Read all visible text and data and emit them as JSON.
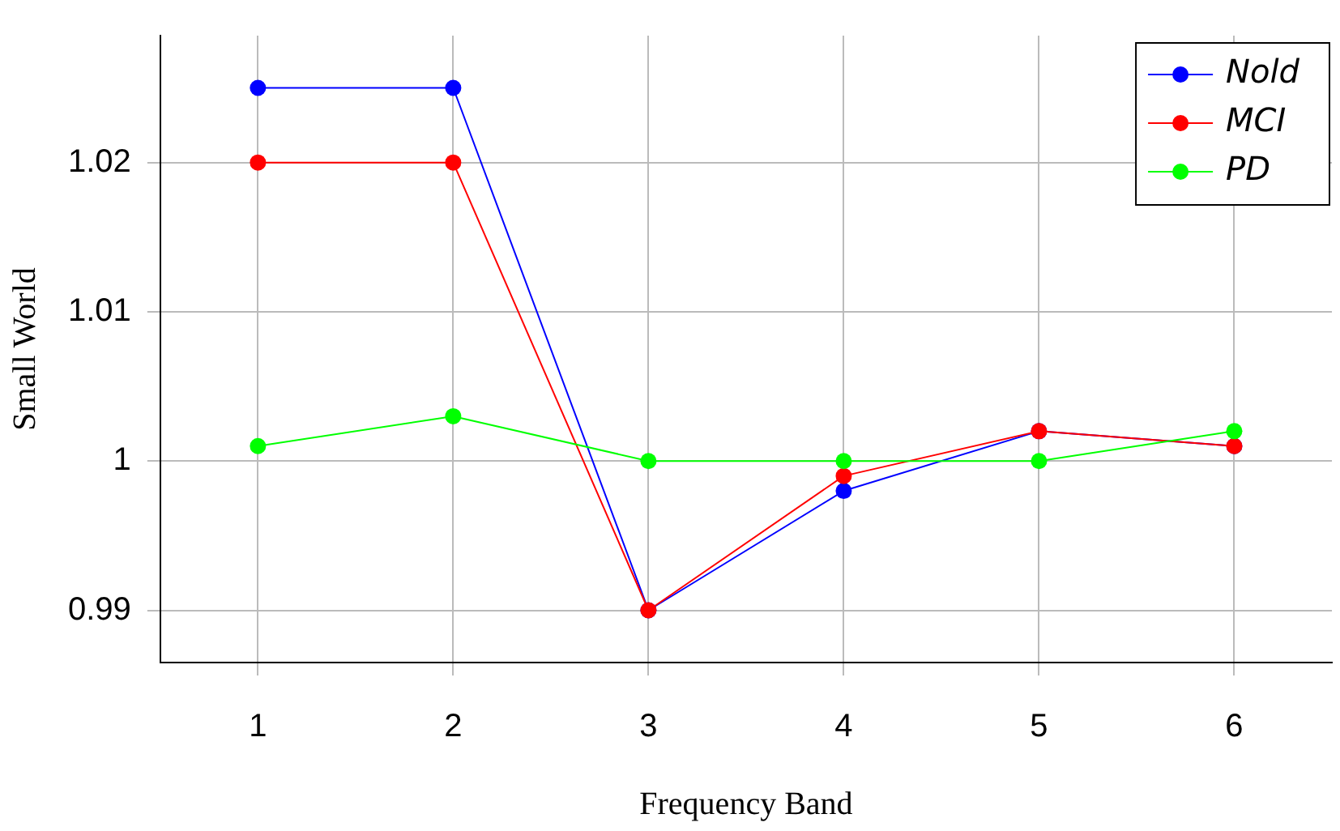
{
  "chart_data": {
    "type": "line",
    "xlabel": "Frequency Band",
    "ylabel": "Small World",
    "categories": [
      "1",
      "2",
      "3",
      "4",
      "5",
      "6"
    ],
    "series": [
      {
        "name": "Nold",
        "color": "#0000ff",
        "values": [
          1.025,
          1.025,
          0.99,
          0.998,
          1.002,
          1.001
        ]
      },
      {
        "name": "MCI",
        "color": "#ff0000",
        "values": [
          1.02,
          1.02,
          0.99,
          0.999,
          1.002,
          1.001
        ]
      },
      {
        "name": "PD",
        "color": "#00ff00",
        "values": [
          1.001,
          1.003,
          1.0,
          1.0,
          1.0,
          1.002
        ]
      }
    ],
    "ylim": [
      0.9865,
      1.0285
    ],
    "yticks": [
      0.99,
      1,
      1.01,
      1.02
    ],
    "grid": true,
    "legend": "top right",
    "marker": "circle",
    "line_style": "solid"
  }
}
